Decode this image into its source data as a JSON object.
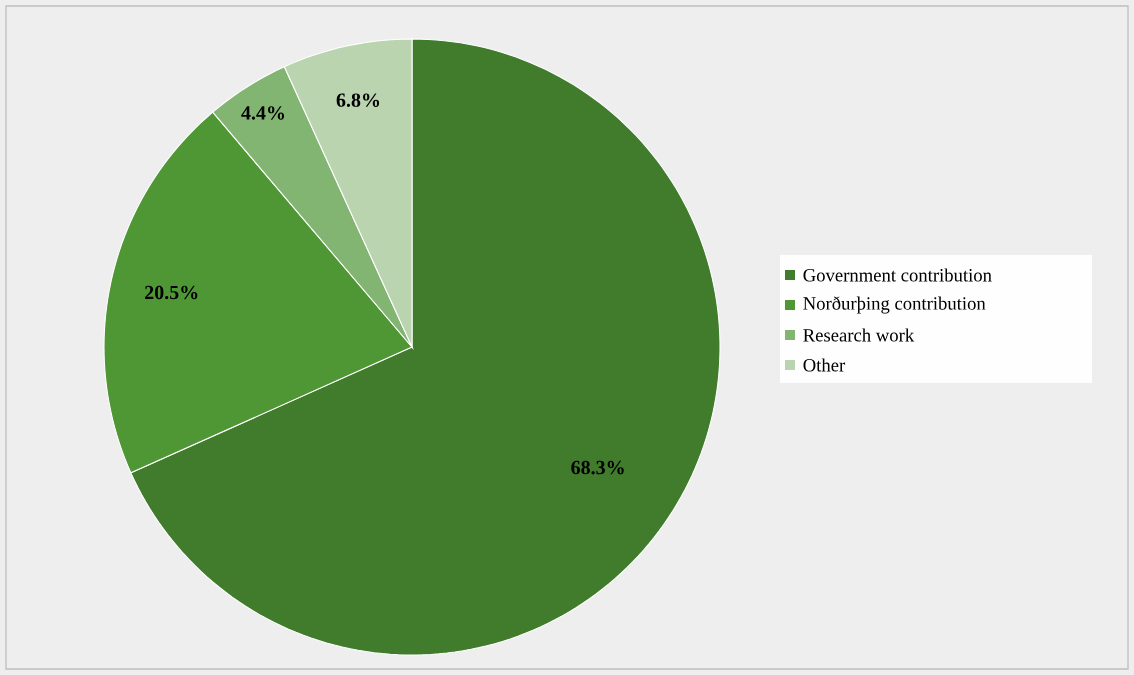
{
  "chart_data": {
    "type": "pie",
    "categories": [
      "Government contribution",
      "Norðurþing contribution",
      "Research work",
      "Other"
    ],
    "values": [
      68.3,
      20.5,
      4.4,
      6.8
    ],
    "colors": [
      "#417b2c",
      "#4f9734",
      "#82b571",
      "#bbd4b0"
    ],
    "value_labels": [
      "68.3%",
      "20.5%",
      "4.4%",
      "6.8%"
    ],
    "legend": "right"
  }
}
